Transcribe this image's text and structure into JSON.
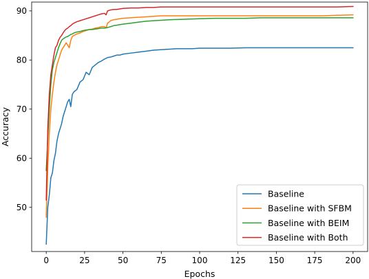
{
  "chart_data": {
    "type": "line",
    "title": "",
    "xlabel": "Epochs",
    "ylabel": "Accuracy",
    "xlim": [
      -9.5,
      209.5
    ],
    "ylim": [
      41,
      91.8
    ],
    "xticks": [
      0,
      25,
      50,
      75,
      100,
      125,
      150,
      175,
      200
    ],
    "yticks": [
      50,
      60,
      70,
      80,
      90
    ],
    "grid": false,
    "legend_position": "lower-right",
    "series": [
      {
        "name": "Baseline",
        "color": "#1f77b4",
        "x": [
          0,
          1,
          2,
          3,
          4,
          5,
          6,
          7,
          8,
          9,
          10,
          11,
          12,
          13,
          14,
          15,
          16,
          17,
          18,
          20,
          22,
          24,
          26,
          28,
          30,
          32,
          34,
          36,
          38,
          40,
          42,
          44,
          46,
          48,
          50,
          55,
          60,
          65,
          70,
          75,
          80,
          85,
          90,
          95,
          100,
          110,
          120,
          130,
          140,
          150,
          160,
          170,
          180,
          190,
          200
        ],
        "y": [
          42.5,
          50,
          52.5,
          56,
          57,
          59.5,
          61,
          63.5,
          65,
          66,
          67,
          68.5,
          69.5,
          70.5,
          71.5,
          72,
          70.5,
          73,
          73.5,
          74,
          75.5,
          76,
          77.5,
          77,
          78.5,
          79,
          79.5,
          79.8,
          80.2,
          80.5,
          80.6,
          80.8,
          81,
          81,
          81.2,
          81.4,
          81.6,
          81.8,
          82,
          82.1,
          82.2,
          82.3,
          82.3,
          82.3,
          82.4,
          82.4,
          82.4,
          82.5,
          82.5,
          82.5,
          82.5,
          82.5,
          82.5,
          82.5,
          82.5
        ]
      },
      {
        "name": "Baseline with SFBM",
        "color": "#ff7f0e",
        "x": [
          0,
          1,
          2,
          3,
          4,
          5,
          6,
          7,
          8,
          9,
          10,
          11,
          12,
          13,
          14,
          15,
          16,
          17,
          18,
          20,
          22,
          24,
          26,
          28,
          30,
          32,
          34,
          36,
          38,
          39,
          40,
          42,
          44,
          46,
          48,
          50,
          55,
          60,
          65,
          70,
          75,
          80,
          90,
          100,
          110,
          120,
          130,
          140,
          150,
          160,
          170,
          180,
          190,
          200
        ],
        "y": [
          48,
          58,
          65,
          70,
          73,
          75.5,
          77.5,
          79,
          80,
          81,
          82,
          82.5,
          83,
          83.5,
          83,
          82.5,
          84,
          84.8,
          85,
          85.3,
          85.5,
          85.8,
          86,
          86.2,
          86.3,
          86.5,
          86.6,
          86.8,
          86.8,
          86.5,
          87.5,
          88,
          88.2,
          88.3,
          88.4,
          88.5,
          88.6,
          88.7,
          88.8,
          88.9,
          89,
          89,
          89,
          89,
          89,
          89,
          89,
          89,
          89,
          89,
          89,
          89,
          89.1,
          89.2
        ]
      },
      {
        "name": "Baseline with BEIM",
        "color": "#2ca02c",
        "x": [
          0,
          1,
          2,
          3,
          4,
          5,
          6,
          7,
          8,
          9,
          10,
          11,
          12,
          13,
          14,
          15,
          16,
          17,
          18,
          20,
          22,
          24,
          26,
          28,
          30,
          32,
          34,
          36,
          38,
          40,
          42,
          44,
          46,
          48,
          50,
          55,
          60,
          65,
          70,
          75,
          80,
          90,
          100,
          110,
          120,
          130,
          140,
          150,
          160,
          170,
          180,
          190,
          200
        ],
        "y": [
          57.5,
          64,
          70,
          75,
          78,
          79.5,
          80.5,
          81.5,
          82.5,
          83.3,
          84,
          84.3,
          84.5,
          84.7,
          84.8,
          85,
          85.2,
          85.3,
          85.5,
          85.7,
          85.8,
          86,
          86.1,
          86.2,
          86.2,
          86.3,
          86.4,
          86.5,
          86.5,
          86.6,
          86.8,
          87,
          87.1,
          87.2,
          87.3,
          87.5,
          87.7,
          87.9,
          88,
          88.1,
          88.2,
          88.3,
          88.4,
          88.5,
          88.5,
          88.5,
          88.6,
          88.6,
          88.6,
          88.6,
          88.6,
          88.6,
          88.6
        ]
      },
      {
        "name": "Baseline with Both",
        "color": "#d62728",
        "x": [
          0,
          1,
          2,
          3,
          4,
          5,
          6,
          7,
          8,
          9,
          10,
          11,
          12,
          13,
          14,
          15,
          16,
          17,
          18,
          20,
          22,
          24,
          26,
          28,
          30,
          32,
          34,
          36,
          38,
          39,
          40,
          42,
          44,
          46,
          48,
          50,
          55,
          60,
          65,
          70,
          75,
          80,
          90,
          100,
          110,
          120,
          130,
          140,
          150,
          160,
          170,
          180,
          190,
          200
        ],
        "y": [
          51.5,
          66,
          73,
          77,
          79,
          81,
          82.5,
          83,
          84,
          84.6,
          85,
          85.5,
          86,
          86.3,
          86.5,
          86.8,
          87,
          87.3,
          87.5,
          87.8,
          88,
          88.2,
          88.4,
          88.6,
          88.8,
          89,
          89.2,
          89.4,
          89.5,
          89.2,
          90,
          90.2,
          90.3,
          90.3,
          90.4,
          90.5,
          90.6,
          90.6,
          90.7,
          90.7,
          90.8,
          90.8,
          90.8,
          90.8,
          90.8,
          90.8,
          90.8,
          90.8,
          90.8,
          90.8,
          90.8,
          90.8,
          90.8,
          90.9
        ]
      }
    ]
  }
}
